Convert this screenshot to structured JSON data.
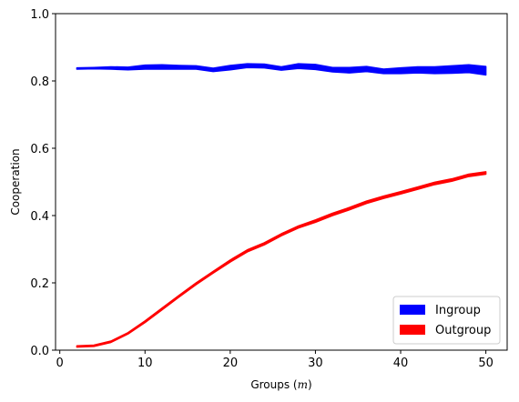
{
  "chart_data": {
    "type": "area",
    "xlabel": "Groups (m)",
    "xlabel_plain": "Groups (",
    "xlabel_var": "m",
    "xlabel_end": ")",
    "ylabel": "Cooperation",
    "xlim": [
      -0.5,
      52.5
    ],
    "ylim": [
      0,
      1
    ],
    "xticks": [
      0,
      10,
      20,
      30,
      40,
      50
    ],
    "yticks": [
      0.0,
      0.2,
      0.4,
      0.6,
      0.8,
      1.0
    ],
    "xtick_labels": [
      "0",
      "10",
      "20",
      "30",
      "40",
      "50"
    ],
    "ytick_labels": [
      "0.0",
      "0.2",
      "0.4",
      "0.6",
      "0.8",
      "1.0"
    ],
    "grid": false,
    "legend_position": "bottom-right",
    "x": [
      2,
      4,
      6,
      8,
      10,
      12,
      14,
      16,
      18,
      20,
      22,
      24,
      26,
      28,
      30,
      32,
      34,
      36,
      38,
      40,
      42,
      44,
      46,
      48,
      50
    ],
    "series": [
      {
        "name": "Ingroup",
        "color": "#0000ff",
        "lower": [
          0.835,
          0.836,
          0.835,
          0.833,
          0.835,
          0.835,
          0.835,
          0.835,
          0.828,
          0.833,
          0.84,
          0.839,
          0.832,
          0.837,
          0.834,
          0.827,
          0.824,
          0.828,
          0.822,
          0.822,
          0.824,
          0.822,
          0.823,
          0.825,
          0.818
        ],
        "upper": [
          0.839,
          0.84,
          0.842,
          0.841,
          0.847,
          0.848,
          0.846,
          0.845,
          0.838,
          0.846,
          0.851,
          0.85,
          0.842,
          0.851,
          0.849,
          0.84,
          0.84,
          0.843,
          0.835,
          0.839,
          0.842,
          0.842,
          0.845,
          0.848,
          0.843
        ]
      },
      {
        "name": "Outgroup",
        "color": "#ff0000",
        "lower": [
          0.009,
          0.011,
          0.023,
          0.048,
          0.082,
          0.12,
          0.158,
          0.195,
          0.229,
          0.262,
          0.292,
          0.313,
          0.34,
          0.363,
          0.38,
          0.4,
          0.417,
          0.436,
          0.451,
          0.464,
          0.478,
          0.492,
          0.502,
          0.516,
          0.523
        ],
        "upper": [
          0.013,
          0.015,
          0.027,
          0.052,
          0.087,
          0.125,
          0.163,
          0.2,
          0.234,
          0.268,
          0.298,
          0.319,
          0.346,
          0.369,
          0.387,
          0.407,
          0.424,
          0.443,
          0.458,
          0.471,
          0.485,
          0.499,
          0.509,
          0.523,
          0.53
        ]
      }
    ]
  }
}
